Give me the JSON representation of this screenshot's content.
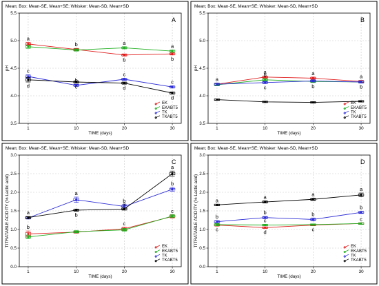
{
  "colors": {
    "EK": "#e01b1b",
    "EKABT5": "#1fae1f",
    "TK": "#2b2bd6",
    "TKABT5": "#000000"
  },
  "chart_data": [
    {
      "type": "line",
      "panel": "A",
      "header": "Mean;  Box: Mean-SE, Mean+SE;  Whisker: Mean-SD, Mean+SD",
      "xlabel": "TIME (days)",
      "ylabel": "pH",
      "categories": [
        "1",
        "10",
        "20",
        "30"
      ],
      "ylim": [
        3.5,
        5.5
      ],
      "yticks": [
        "3.5",
        "4.0",
        "4.5",
        "5.0",
        "5.5"
      ],
      "legend": [
        "EK",
        "EKABT5",
        "TK",
        "TKABT5"
      ],
      "series": [
        {
          "name": "EK",
          "values": [
            4.94,
            4.84,
            4.74,
            4.76
          ],
          "sd": [
            0.03,
            0.02,
            0.02,
            0.02
          ],
          "letters": [
            "a",
            "b",
            "b",
            "b"
          ],
          "letter_pos": [
            "above",
            "above",
            "below",
            "below"
          ]
        },
        {
          "name": "EKABT5",
          "values": [
            4.89,
            4.83,
            4.87,
            4.81
          ],
          "sd": [
            0.03,
            0.02,
            0.02,
            0.02
          ],
          "letters": [
            "",
            "",
            "a",
            "a"
          ],
          "letter_pos": [
            "above",
            "above",
            "above",
            "above"
          ]
        },
        {
          "name": "TK",
          "values": [
            4.35,
            4.19,
            4.3,
            4.16
          ],
          "sd": [
            0.03,
            0.02,
            0.02,
            0.02
          ],
          "letters": [
            "c",
            "b",
            "c",
            "c"
          ],
          "letter_pos": [
            "above",
            "above",
            "above",
            "above"
          ]
        },
        {
          "name": "TKABT5",
          "values": [
            4.29,
            4.25,
            4.23,
            4.05
          ],
          "sd": [
            0.04,
            0.02,
            0.02,
            0.02
          ],
          "letters": [
            "d",
            "c",
            "d",
            "d"
          ],
          "letter_pos": [
            "below",
            "below",
            "below",
            "below"
          ]
        }
      ]
    },
    {
      "type": "line",
      "panel": "B",
      "header": "Mean;  Box: Mean-SE, Mean+SE;  Whisker: Mean-SD, Mean+SD",
      "xlabel": "TIME (days)",
      "ylabel": "pH",
      "categories": [
        "1",
        "10",
        "20",
        "30"
      ],
      "ylim": [
        3.5,
        5.5
      ],
      "yticks": [
        "3.5",
        "4.0",
        "4.5",
        "5.0",
        "5.5"
      ],
      "legend": [
        "EK",
        "EKABT5",
        "TK",
        "TKABT5"
      ],
      "series": [
        {
          "name": "EK",
          "values": [
            4.21,
            4.34,
            4.32,
            4.26
          ],
          "sd": [
            0.02,
            0.02,
            0.02,
            0.02
          ],
          "letters": [
            "a",
            "a",
            "a",
            "a"
          ],
          "letter_pos": [
            "above",
            "above",
            "above",
            "above"
          ]
        },
        {
          "name": "EKABT5",
          "values": [
            4.2,
            4.29,
            4.26,
            4.25
          ],
          "sd": [
            0.02,
            0.02,
            0.02,
            0.02
          ],
          "letters": [
            "",
            "b",
            "b",
            "b"
          ],
          "letter_pos": [
            "above",
            "above",
            "below",
            "below"
          ]
        },
        {
          "name": "TK",
          "values": [
            4.21,
            4.24,
            4.27,
            4.25
          ],
          "sd": [
            0.02,
            0.02,
            0.02,
            0.02
          ],
          "letters": [
            "",
            "c",
            "",
            ""
          ],
          "letter_pos": [
            "above",
            "below",
            "above",
            "above"
          ]
        },
        {
          "name": "TKABT5",
          "values": [
            3.93,
            3.89,
            3.88,
            3.9
          ],
          "sd": [
            0.01,
            0.01,
            0.01,
            0.01
          ],
          "letters": [
            "",
            "",
            "",
            ""
          ],
          "letter_pos": [
            "above",
            "above",
            "above",
            "above"
          ]
        }
      ]
    },
    {
      "type": "line",
      "panel": "C",
      "header": "Mean;  Box: Mean-SE, Mean+SE;  Whisker: Mean-SD, Mean+SD",
      "xlabel": "TIME (days)",
      "ylabel": "TITRATABLE ACIDITY (% Lactic acid)",
      "categories": [
        "1",
        "10",
        "20",
        "30"
      ],
      "ylim": [
        0.0,
        3.0
      ],
      "yticks": [
        "0.0",
        "0.5",
        "1.0",
        "1.5",
        "2.0",
        "2.5",
        "3.0"
      ],
      "legend": [
        "EK",
        "EKABT5",
        "TK",
        "TKABT5"
      ],
      "series": [
        {
          "name": "EK",
          "values": [
            0.88,
            0.93,
            1.02,
            1.35
          ],
          "sd": [
            0.08,
            0.03,
            0.04,
            0.04
          ],
          "letters": [
            "b",
            "",
            "c",
            "c"
          ],
          "letter_pos": [
            "above",
            "above",
            "above",
            "above"
          ]
        },
        {
          "name": "EKABT5",
          "values": [
            0.8,
            0.94,
            0.99,
            1.36
          ],
          "sd": [
            0.05,
            0.03,
            0.04,
            0.04
          ],
          "letters": [
            "",
            "",
            "",
            ""
          ],
          "letter_pos": [
            "above",
            "above",
            "above",
            "above"
          ]
        },
        {
          "name": "TK",
          "values": [
            1.31,
            1.8,
            1.62,
            2.08
          ],
          "sd": [
            0.03,
            0.07,
            0.05,
            0.05
          ],
          "letters": [
            "",
            "a",
            "b",
            "b"
          ],
          "letter_pos": [
            "above",
            "above",
            "above",
            "above"
          ]
        },
        {
          "name": "TKABT5",
          "values": [
            1.32,
            1.52,
            1.55,
            2.5
          ],
          "sd": [
            0.03,
            0.03,
            0.03,
            0.07
          ],
          "letters": [
            "a",
            "b",
            "a",
            "a"
          ],
          "letter_pos": [
            "above",
            "below",
            "above",
            "above"
          ]
        }
      ]
    },
    {
      "type": "line",
      "panel": "D",
      "header": "Mean;  Box: Mean-SE, Mean+SE;  Whisker: Mean-SD, Mean+SD",
      "xlabel": "TIME (days)",
      "ylabel": "TITRATABLE ACIDITY (% Lactic acid)",
      "categories": [
        "1",
        "10",
        "20",
        "30"
      ],
      "ylim": [
        0.0,
        3.0
      ],
      "yticks": [
        "0.0",
        "0.5",
        "1.0",
        "1.5",
        "2.0",
        "2.5",
        "3.0"
      ],
      "legend": [
        "EK",
        "EKABT5",
        "TK",
        "TKABT5"
      ],
      "series": [
        {
          "name": "EK",
          "values": [
            1.12,
            1.05,
            1.12,
            1.16
          ],
          "sd": [
            0.03,
            0.02,
            0.02,
            0.02
          ],
          "letters": [
            "",
            "d",
            "c",
            "c"
          ],
          "letter_pos": [
            "above",
            "below",
            "below",
            "above"
          ]
        },
        {
          "name": "EKABT5",
          "values": [
            1.13,
            1.12,
            1.13,
            1.16
          ],
          "sd": [
            0.03,
            0.02,
            0.02,
            0.02
          ],
          "letters": [
            "c",
            "c",
            "",
            ""
          ],
          "letter_pos": [
            "below",
            "above",
            "above",
            "above"
          ]
        },
        {
          "name": "TK",
          "values": [
            1.21,
            1.32,
            1.27,
            1.46
          ],
          "sd": [
            0.03,
            0.03,
            0.04,
            0.03
          ],
          "letters": [
            "b",
            "b",
            "b",
            "b"
          ],
          "letter_pos": [
            "above",
            "above",
            "above",
            "above"
          ]
        },
        {
          "name": "TKABT5",
          "values": [
            1.66,
            1.74,
            1.81,
            1.93
          ],
          "sd": [
            0.02,
            0.03,
            0.03,
            0.05
          ],
          "letters": [
            "a",
            "a",
            "a",
            "a"
          ],
          "letter_pos": [
            "above",
            "above",
            "above",
            "above"
          ]
        }
      ]
    }
  ]
}
